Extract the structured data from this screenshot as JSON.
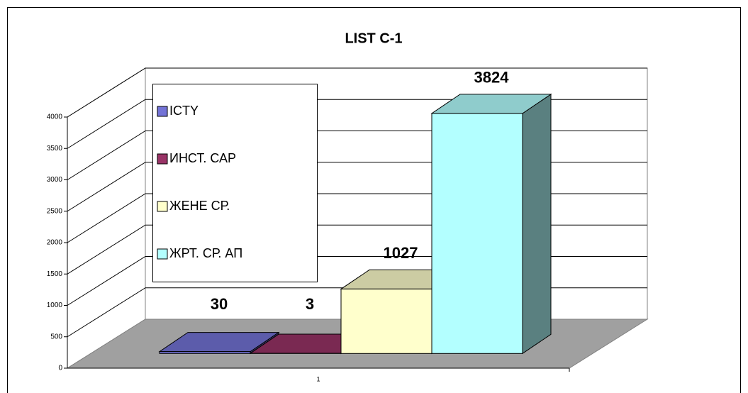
{
  "chart_data": {
    "type": "bar3d",
    "title": "LIST C-1",
    "categories": [
      "1"
    ],
    "series": [
      {
        "name": "ICTY",
        "color": "#7373d6",
        "values": [
          30
        ]
      },
      {
        "name": "ИНСТ. САР",
        "color": "#993366",
        "values": [
          3
        ]
      },
      {
        "name": "ЖЕНЕ СР.",
        "color": "#ffffcc",
        "values": [
          1027
        ]
      },
      {
        "name": "ЖРТ. СР. АП",
        "color": "#b3ffff",
        "values": [
          3824
        ]
      }
    ],
    "ylim": [
      0,
      4000
    ],
    "yticks": [
      0,
      500,
      1000,
      1500,
      2000,
      2500,
      3000,
      3500,
      4000
    ],
    "grid": true,
    "legend": "left",
    "data_labels": true
  }
}
